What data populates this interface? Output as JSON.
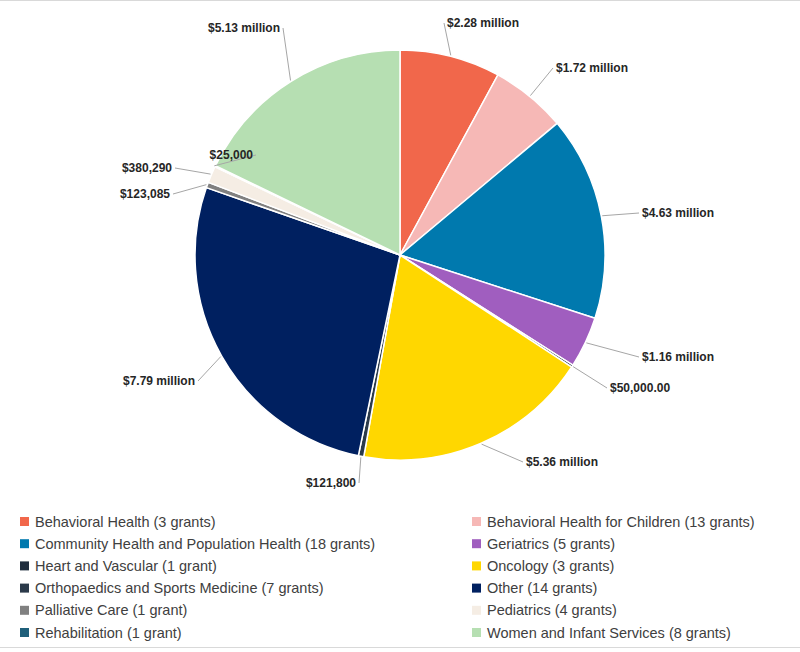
{
  "chart_data": {
    "type": "pie",
    "categories": [
      "Behavioral Health (3 grants)",
      "Behavioral Health for Children (13 grants)",
      "Community Health and Population Health (18 grants)",
      "Geriatrics (5 grants)",
      "Heart and Vascular (1 grant)",
      "Oncology (3 grants)",
      "Orthopaedics and Sports Medicine (7 grants)",
      "Other (14 grants)",
      "Palliative Care (1 grant)",
      "Pediatrics (4 grants)",
      "Rehabilitation (1 grant)",
      "Women and Infant Services (8 grants)"
    ],
    "values": [
      2280000,
      1720000,
      4630000,
      1160000,
      50000,
      5360000,
      121800,
      7790000,
      123085,
      380290,
      25000,
      5130000
    ],
    "value_labels": [
      "$2.28 million",
      "$1.72 million",
      "$4.63 million",
      "$1.16 million",
      "$50,000.00",
      "$5.36 million",
      "$121,800",
      "$7.79 million",
      "$123,085",
      "$380,290",
      "$25,000",
      "$5.13 million"
    ],
    "colors": [
      "#f1674b",
      "#f6b8b6",
      "#0079ae",
      "#a05ebf",
      "#1f2d3d",
      "#ffd700",
      "#2b3a4a",
      "#002060",
      "#808080",
      "#f5ede4",
      "#1f5f7a",
      "#b6dfb2"
    ],
    "data_labels": true,
    "legend": "bottom"
  }
}
